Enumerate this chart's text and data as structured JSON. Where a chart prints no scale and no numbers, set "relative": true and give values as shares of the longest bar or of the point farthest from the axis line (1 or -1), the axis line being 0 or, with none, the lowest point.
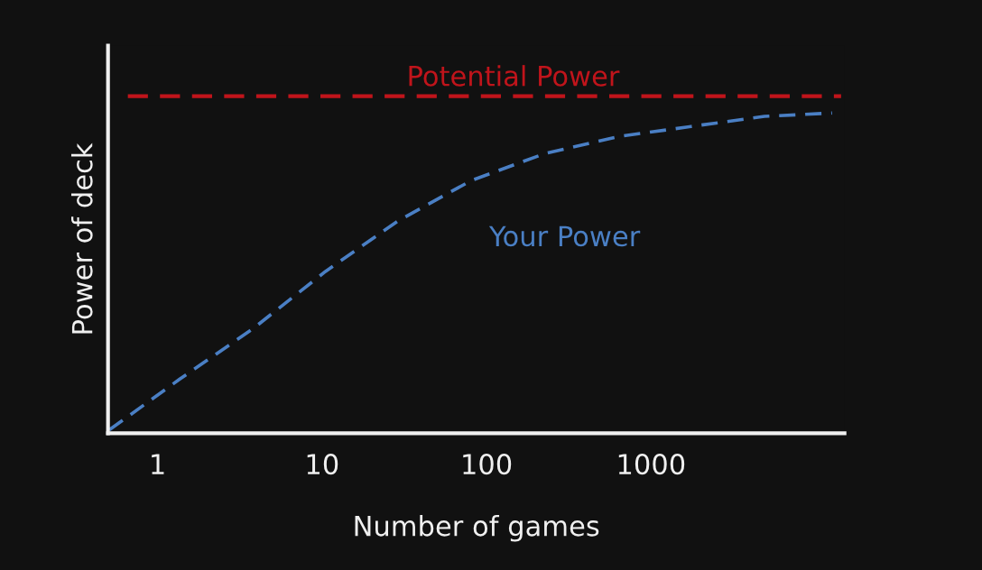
{
  "chart_data": {
    "type": "line",
    "xlabel": "Number of games",
    "ylabel": "Power of deck",
    "relative": true,
    "log": "x",
    "xlim": [
      0.5,
      15000
    ],
    "xticks": [
      1,
      10,
      100,
      1000
    ],
    "tick_labels": "x",
    "grid": false,
    "legend": false,
    "marker": "none",
    "line_style": "dashed",
    "series": [
      {
        "name": "Potential Power",
        "color": "#c0141b",
        "x": [
          0.66,
          14300
        ],
        "values": [
          1,
          1
        ]
      },
      {
        "name": "Your Power",
        "color": "#4a7fc4",
        "x": [
          0.51,
          1.36,
          3.8,
          10.5,
          29,
          81,
          227,
          631,
          1750,
          4890,
          12600
        ],
        "values": [
          0.01,
          0.16,
          0.31,
          0.48,
          0.63,
          0.75,
          0.83,
          0.88,
          0.91,
          0.94,
          0.95
        ]
      }
    ]
  }
}
